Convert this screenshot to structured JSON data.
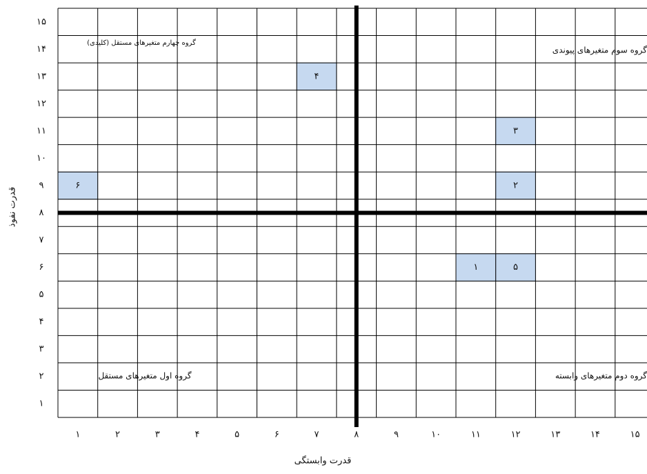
{
  "chart_data": {
    "type": "grid-scatter",
    "xlabel": "قدرت وابستگی",
    "ylabel": "قدرت نفوذ",
    "xlim": [
      0.5,
      15.5
    ],
    "ylim": [
      0.5,
      15.5
    ],
    "xticks": [
      {
        "value": 1,
        "label": "۱"
      },
      {
        "value": 2,
        "label": "۲"
      },
      {
        "value": 3,
        "label": "۳"
      },
      {
        "value": 4,
        "label": "۴"
      },
      {
        "value": 5,
        "label": "۵"
      },
      {
        "value": 6,
        "label": "۶"
      },
      {
        "value": 7,
        "label": "۷"
      },
      {
        "value": 8,
        "label": "۸"
      },
      {
        "value": 9,
        "label": "۹"
      },
      {
        "value": 10,
        "label": "۱۰"
      },
      {
        "value": 11,
        "label": "۱۱"
      },
      {
        "value": 12,
        "label": "۱۲"
      },
      {
        "value": 13,
        "label": "۱۳"
      },
      {
        "value": 14,
        "label": "۱۴"
      },
      {
        "value": 15,
        "label": "۱۵"
      }
    ],
    "yticks": [
      {
        "value": 1,
        "label": "۱"
      },
      {
        "value": 2,
        "label": "۲"
      },
      {
        "value": 3,
        "label": "۳"
      },
      {
        "value": 4,
        "label": "۴"
      },
      {
        "value": 5,
        "label": "۵"
      },
      {
        "value": 6,
        "label": "۶"
      },
      {
        "value": 7,
        "label": "۷"
      },
      {
        "value": 8,
        "label": "۸"
      },
      {
        "value": 9,
        "label": "۹"
      },
      {
        "value": 10,
        "label": "۱۰"
      },
      {
        "value": 11,
        "label": "۱۱"
      },
      {
        "value": 12,
        "label": "۱۲"
      },
      {
        "value": 13,
        "label": "۱۳"
      },
      {
        "value": 14,
        "label": "۱۴"
      },
      {
        "value": 15,
        "label": "۱۵"
      }
    ],
    "grid": true,
    "dividers": {
      "x": 8,
      "y": 8
    },
    "color": "#c6d9f0",
    "points": {
      "labels": [
        "۶",
        "۴",
        "۳",
        "۲",
        "۱",
        "۵"
      ],
      "x": [
        1,
        7,
        12,
        12,
        11,
        12
      ],
      "y": [
        9,
        13,
        11,
        9,
        6,
        6
      ]
    },
    "annotations": {
      "top_left": "گروه چهارم متغیرهای مستقل (کلیدی)",
      "top_right": "گروه سوم متغیرهای پیوندی",
      "bottom_left": "گروه اول متغیرهای مستقل",
      "bottom_right": "گروه دوم متغیرهای وابسته"
    }
  }
}
